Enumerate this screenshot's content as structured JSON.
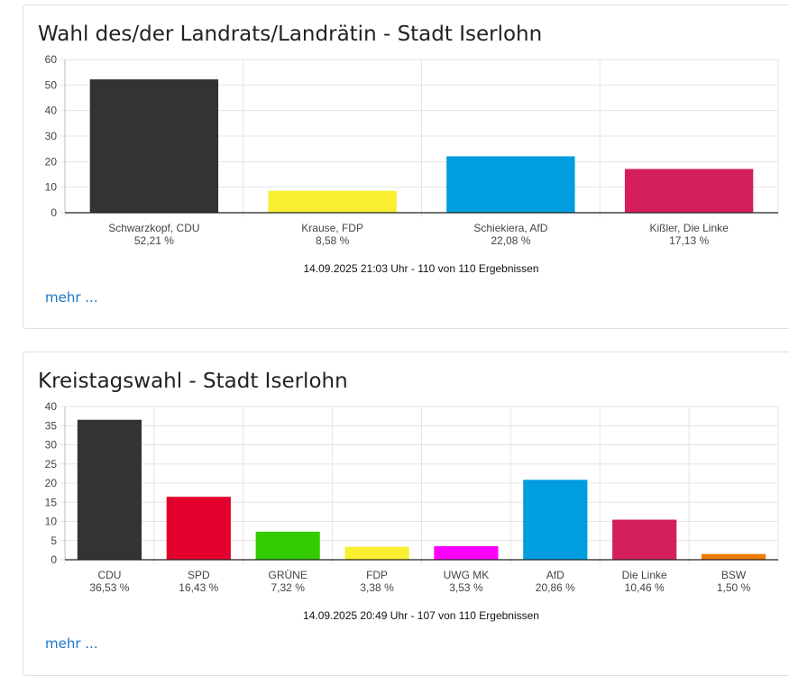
{
  "chart_data": [
    {
      "type": "bar",
      "title": "Wahl des/der Landrats/Landrätin - Stadt Iserlohn",
      "categories": [
        "Schwarzkopf, CDU",
        "Krause, FDP",
        "Schiekiera, AfD",
        "Kißler, Die Linke"
      ],
      "values": [
        52.21,
        8.58,
        22.08,
        17.13
      ],
      "value_labels": [
        "52,21 %",
        "8,58 %",
        "22,08 %",
        "17,13 %"
      ],
      "colors": [
        "#333333",
        "#f9ee30",
        "#009de0",
        "#d41f5c"
      ],
      "ylim": [
        0,
        60
      ],
      "yticks": [
        0,
        10,
        20,
        30,
        40,
        50,
        60
      ],
      "xlabel": "",
      "ylabel": "",
      "footnote": "14.09.2025 21:03 Uhr - 110 von 110 Ergebnissen",
      "grid": true
    },
    {
      "type": "bar",
      "title": "Kreistagswahl - Stadt Iserlohn",
      "categories": [
        "CDU",
        "SPD",
        "GRÜNE",
        "FDP",
        "UWG MK",
        "AfD",
        "Die Linke",
        "BSW"
      ],
      "values": [
        36.53,
        16.43,
        7.32,
        3.38,
        3.53,
        20.86,
        10.46,
        1.5
      ],
      "value_labels": [
        "36,53 %",
        "16,43 %",
        "7,32 %",
        "3,38 %",
        "3,53 %",
        "20,86 %",
        "10,46 %",
        "1,50 %"
      ],
      "colors": [
        "#333333",
        "#e3002c",
        "#33cc00",
        "#f9ee30",
        "#ff00ff",
        "#009de0",
        "#d41f5c",
        "#ef7d00"
      ],
      "ylim": [
        0,
        40
      ],
      "yticks": [
        0,
        5,
        10,
        15,
        20,
        25,
        30,
        35,
        40
      ],
      "xlabel": "",
      "ylabel": "",
      "footnote": "14.09.2025 20:49 Uhr - 107 von 110 Ergebnissen",
      "grid": true
    }
  ],
  "links": {
    "more1": "mehr ...",
    "more2": "mehr ..."
  }
}
